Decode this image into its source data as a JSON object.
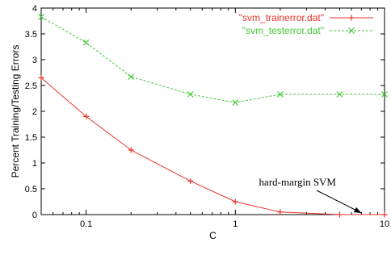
{
  "chart_data": {
    "type": "line",
    "title": "",
    "xlabel": "C",
    "ylabel": "Percent Training/Testing Errors",
    "xscale": "log",
    "xlim": [
      0.05,
      10
    ],
    "ylim": [
      0,
      4
    ],
    "x_ticks": [
      {
        "value": 0.1,
        "label": "0.1"
      },
      {
        "value": 1,
        "label": "1"
      },
      {
        "value": 10,
        "label": "10"
      }
    ],
    "y_ticks": [
      {
        "value": 0,
        "label": "0"
      },
      {
        "value": 0.5,
        "label": "0.5"
      },
      {
        "value": 1,
        "label": "1"
      },
      {
        "value": 1.5,
        "label": "1.5"
      },
      {
        "value": 2,
        "label": "2"
      },
      {
        "value": 2.5,
        "label": "2.5"
      },
      {
        "value": 3,
        "label": "3"
      },
      {
        "value": 3.5,
        "label": "3.5"
      },
      {
        "value": 4,
        "label": "4"
      }
    ],
    "grid": false,
    "legend_position": "top-right",
    "x": [
      0.05,
      0.1,
      0.2,
      0.5,
      1,
      2,
      5,
      10
    ],
    "series": [
      {
        "name": "\"svm_trainerror.dat\"",
        "color": "#e8352e",
        "line_style": "solid",
        "marker": "plus",
        "values": [
          2.65,
          1.9,
          1.25,
          0.65,
          0.25,
          0.05,
          0.0,
          0.0
        ]
      },
      {
        "name": "\"svm_testerror.dat\"",
        "color": "#44c837",
        "line_style": "dashed",
        "marker": "cross",
        "values": [
          3.83,
          3.33,
          2.67,
          2.33,
          2.17,
          2.33,
          2.33,
          2.33
        ]
      }
    ],
    "annotations": [
      {
        "text": "hard-margin SVM",
        "arrow_to": {
          "x": 7,
          "y": 0
        }
      }
    ]
  }
}
